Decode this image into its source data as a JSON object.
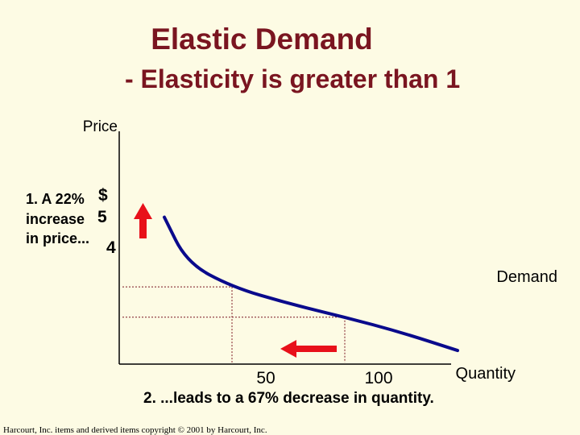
{
  "header": {
    "title": "Elastic Demand",
    "subtitle": "- Elasticity is greater than 1"
  },
  "chart_data": {
    "type": "line",
    "title": "Elastic Demand",
    "subtitle": "- Elasticity is greater than 1",
    "ylabel": "Price",
    "xlabel": "Quantity",
    "y_currency_symbol": "$",
    "series": [
      {
        "name": "Demand",
        "points": [
          [
            20,
            7.3
          ],
          [
            30,
            5.8
          ],
          [
            50,
            5
          ],
          [
            75,
            4.45
          ],
          [
            100,
            4
          ],
          [
            125,
            3.5
          ],
          [
            150,
            2.9
          ]
        ]
      }
    ],
    "y_ticks": [
      5,
      4
    ],
    "x_ticks": [
      50,
      100
    ],
    "reference_points": [
      {
        "x": 50,
        "y": 5
      },
      {
        "x": 100,
        "y": 4
      }
    ],
    "annotations": {
      "price_change_lines": [
        "1. A 22%",
        "increase",
        "in price..."
      ],
      "quantity_change": "2. ...leads to a 67% decrease in quantity."
    },
    "arrows": [
      {
        "direction": "up",
        "color": "#e8101a"
      },
      {
        "direction": "left",
        "color": "#e8101a"
      }
    ],
    "colors": {
      "curve": "#0a0a8c",
      "arrow": "#e8101a",
      "title": "#7a1520",
      "axis": "#000000",
      "guide": "#7a1520",
      "background": "#fdfbe4"
    }
  },
  "footer": {
    "copyright": "Harcourt, Inc. items and derived items copyright © 2001 by Harcourt, Inc."
  }
}
